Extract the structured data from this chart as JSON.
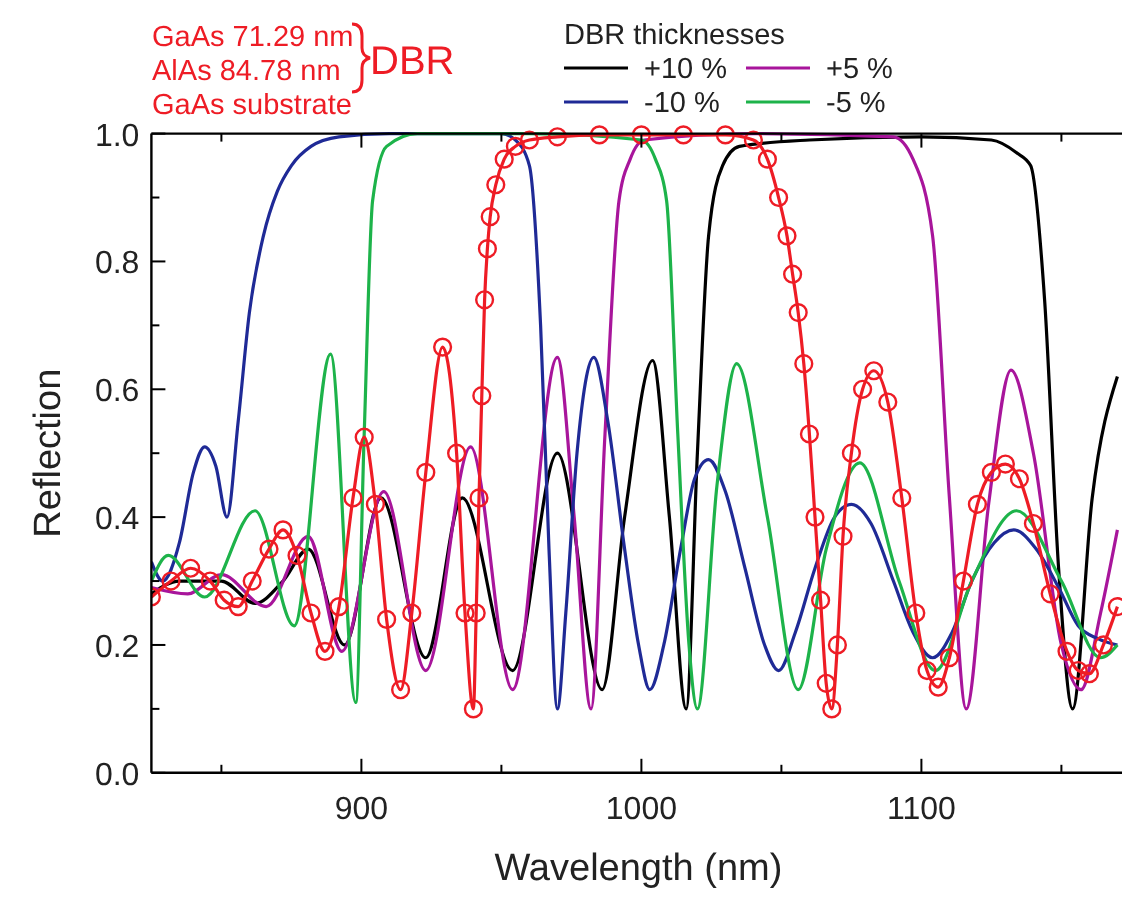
{
  "chart_data": {
    "type": "line",
    "xlabel": "Wavelength (nm)",
    "ylabel": "Reflection",
    "legend_title": "DBR thicknesses",
    "legend": "top right",
    "grid": false,
    "xlim": [
      825,
      1170
    ],
    "xticks": [
      {
        "value": 850,
        "label": null
      },
      900,
      {
        "value": 950,
        "label": null
      },
      1000,
      {
        "value": 1050,
        "label": null
      },
      1100,
      {
        "value": 1150,
        "label": null
      }
    ],
    "ylim": [
      0,
      1
    ],
    "yticks": [
      "0.0",
      {
        "value": 0.1,
        "label": null
      },
      {
        "value": 0.2,
        "label": "0.2"
      },
      {
        "value": 0.3,
        "label": null
      },
      {
        "value": 0.4,
        "label": "0.4"
      },
      {
        "value": 0.5,
        "label": null
      },
      {
        "value": 0.6,
        "label": "0.6"
      },
      {
        "value": 0.7,
        "label": null
      },
      {
        "value": 0.8,
        "label": "0.8"
      },
      {
        "value": 0.9,
        "label": null
      },
      {
        "value": 1.0,
        "label": "1.0"
      }
    ],
    "annotations": [
      "GaAs 71.29 nm",
      "AlAs 84.78 nm",
      "DBR",
      "GaAs substrate"
    ],
    "series": [
      {
        "name": "+10 %",
        "color": "#000000",
        "x": [
          825,
          835,
          850,
          862,
          872,
          881,
          894,
          907,
          923,
          936,
          954,
          970,
          986,
          994,
          1004,
          1010,
          1016,
          1020,
          1024,
          1029,
          1035,
          1060,
          1100,
          1125,
          1134,
          1139,
          1144,
          1149,
          1154,
          1161,
          1170
        ],
        "values": [
          0.28,
          0.3,
          0.3,
          0.265,
          0.3,
          0.35,
          0.2,
          0.43,
          0.18,
          0.43,
          0.16,
          0.5,
          0.13,
          0.4,
          0.645,
          0.4,
          0.1,
          0.5,
          0.84,
          0.95,
          0.98,
          0.99,
          0.995,
          0.99,
          0.97,
          0.95,
          0.74,
          0.32,
          0.1,
          0.43,
          0.62
        ]
      },
      {
        "name": "+5 %",
        "color": "#a8159b",
        "x": [
          825,
          838,
          850,
          866,
          881,
          893,
          908,
          923,
          939,
          954,
          970,
          976,
          982,
          987,
          992,
          996,
          1001,
          1040,
          1090,
          1097,
          1104,
          1110,
          1116,
          1124,
          1132,
          1140,
          1150,
          1157,
          1164,
          1170
        ],
        "values": [
          0.29,
          0.28,
          0.31,
          0.26,
          0.37,
          0.19,
          0.44,
          0.16,
          0.51,
          0.13,
          0.65,
          0.4,
          0.1,
          0.53,
          0.895,
          0.96,
          0.99,
          1.0,
          0.995,
          0.96,
          0.84,
          0.43,
          0.1,
          0.42,
          0.63,
          0.5,
          0.2,
          0.13,
          0.25,
          0.38
        ]
      },
      {
        "name": "-10 %",
        "color": "#1f2a96",
        "x": [
          825,
          829,
          835,
          840,
          844,
          848,
          852,
          856,
          860,
          865,
          870,
          875,
          882,
          892,
          910,
          950,
          955,
          960,
          964,
          967,
          970,
          973,
          977,
          983,
          988,
          994,
          999,
          1003,
          1008,
          1014,
          1019,
          1024,
          1030,
          1037,
          1044,
          1049,
          1055,
          1062,
          1069,
          1075,
          1082,
          1090,
          1097,
          1104,
          1111,
          1118,
          1126,
          1133,
          1141,
          1149,
          1156,
          1163,
          1170
        ],
        "values": [
          0.33,
          0.3,
          0.36,
          0.47,
          0.51,
          0.48,
          0.4,
          0.55,
          0.72,
          0.84,
          0.91,
          0.95,
          0.98,
          0.995,
          1.0,
          1.0,
          0.99,
          0.95,
          0.7,
          0.35,
          0.1,
          0.25,
          0.5,
          0.65,
          0.55,
          0.35,
          0.2,
          0.13,
          0.2,
          0.35,
          0.46,
          0.49,
          0.44,
          0.32,
          0.2,
          0.16,
          0.22,
          0.32,
          0.4,
          0.42,
          0.39,
          0.3,
          0.22,
          0.18,
          0.22,
          0.3,
          0.36,
          0.38,
          0.35,
          0.29,
          0.23,
          0.21,
          0.2
        ]
      },
      {
        "name": "-5 %",
        "color": "#1db34a",
        "x": [
          825,
          831,
          844,
          862,
          876,
          889,
          898,
          901,
          904,
          909,
          920,
          960,
          1000,
          1005,
          1009,
          1013,
          1017,
          1020,
          1027,
          1034,
          1045,
          1056,
          1066,
          1078,
          1092,
          1105,
          1118,
          1134,
          1150,
          1164,
          1170
        ],
        "values": [
          0.3,
          0.34,
          0.275,
          0.41,
          0.23,
          0.655,
          0.11,
          0.53,
          0.895,
          0.98,
          1.0,
          1.0,
          0.99,
          0.96,
          0.895,
          0.53,
          0.2,
          0.1,
          0.45,
          0.64,
          0.4,
          0.13,
          0.35,
          0.485,
          0.3,
          0.16,
          0.3,
          0.41,
          0.3,
          0.18,
          0.2
        ]
      },
      {
        "color": "#ee1c25",
        "marker": "circle",
        "x": [
          825,
          832,
          839,
          846,
          851,
          856,
          861,
          867,
          872,
          877,
          882,
          887,
          892,
          897,
          901,
          905,
          909,
          914,
          918,
          923,
          929,
          934,
          937,
          940,
          941,
          942,
          943,
          944,
          945,
          946,
          948,
          951,
          955,
          960,
          970,
          985,
          1000,
          1015,
          1030,
          1040,
          1045,
          1049,
          1052,
          1054,
          1056,
          1058,
          1060,
          1062,
          1064,
          1066,
          1068,
          1070,
          1072,
          1075,
          1079,
          1083,
          1088,
          1093,
          1098,
          1102,
          1106,
          1110,
          1115,
          1120,
          1125,
          1130,
          1135,
          1140,
          1146,
          1152,
          1156,
          1160,
          1165,
          1170
        ],
        "values": [
          0.275,
          0.3,
          0.32,
          0.3,
          0.27,
          0.26,
          0.3,
          0.35,
          0.38,
          0.34,
          0.25,
          0.19,
          0.26,
          0.43,
          0.525,
          0.42,
          0.24,
          0.13,
          0.25,
          0.47,
          0.666,
          0.5,
          0.25,
          0.1,
          0.25,
          0.43,
          0.59,
          0.74,
          0.82,
          0.87,
          0.92,
          0.96,
          0.98,
          0.99,
          0.995,
          0.998,
          0.998,
          0.998,
          0.998,
          0.99,
          0.96,
          0.9,
          0.84,
          0.78,
          0.72,
          0.64,
          0.53,
          0.4,
          0.27,
          0.14,
          0.1,
          0.2,
          0.37,
          0.5,
          0.6,
          0.629,
          0.58,
          0.43,
          0.25,
          0.16,
          0.134,
          0.18,
          0.3,
          0.42,
          0.47,
          0.483,
          0.46,
          0.39,
          0.28,
          0.19,
          0.16,
          0.155,
          0.2,
          0.26
        ]
      }
    ]
  }
}
